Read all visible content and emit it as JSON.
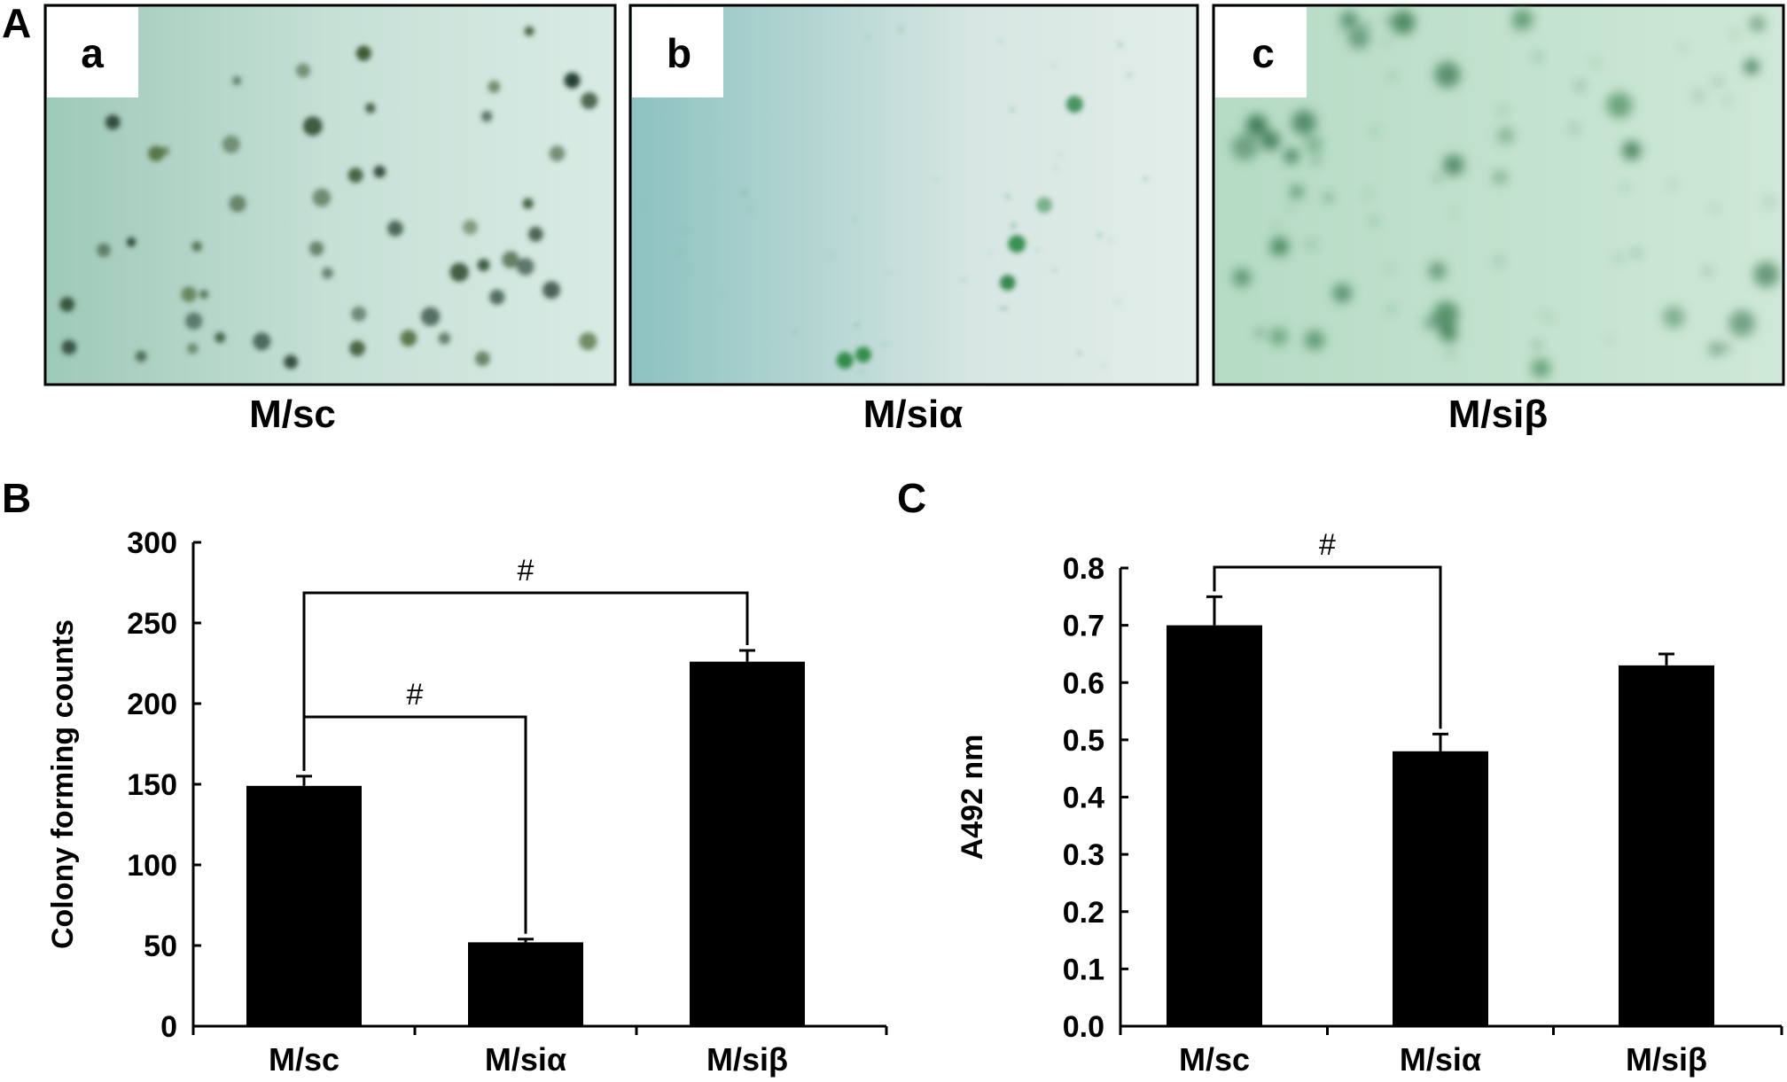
{
  "panels": {
    "A": {
      "letter": "A",
      "images": [
        {
          "sub_letter": "a",
          "caption": "M/sc"
        },
        {
          "sub_letter": "b",
          "caption": "M/siα"
        },
        {
          "sub_letter": "c",
          "caption": "M/siβ"
        }
      ]
    },
    "B": {
      "letter": "B"
    },
    "C": {
      "letter": "C"
    }
  },
  "chart_data": [
    {
      "type": "bar",
      "categories": [
        "M/sc",
        "M/siα",
        "M/siβ"
      ],
      "values": [
        149,
        52,
        226
      ],
      "errors": [
        6,
        2,
        7
      ],
      "title": "",
      "xlabel": "",
      "ylabel": "Colony forming counts",
      "ylim": [
        0,
        300
      ],
      "yticks": [
        "0",
        "50",
        "100",
        "150",
        "200",
        "250",
        "300"
      ],
      "grid": false,
      "bar_color": "#000000",
      "significance": [
        {
          "from": 0,
          "to": 2,
          "label": "#"
        },
        {
          "from": 0,
          "to": 1,
          "label": "#"
        }
      ]
    },
    {
      "type": "bar",
      "categories": [
        "M/sc",
        "M/siα",
        "M/siβ"
      ],
      "values": [
        0.7,
        0.48,
        0.63
      ],
      "errors": [
        0.05,
        0.03,
        0.02
      ],
      "title": "",
      "xlabel": "",
      "ylabel": "A492 nm",
      "ylim": [
        0.0,
        0.8
      ],
      "yticks": [
        "0.0",
        "0.1",
        "0.2",
        "0.3",
        "0.4",
        "0.5",
        "0.6",
        "0.7",
        "0.8"
      ],
      "grid": false,
      "bar_color": "#000000",
      "significance": [
        {
          "from": 0,
          "to": 1,
          "label": "#"
        }
      ]
    }
  ]
}
